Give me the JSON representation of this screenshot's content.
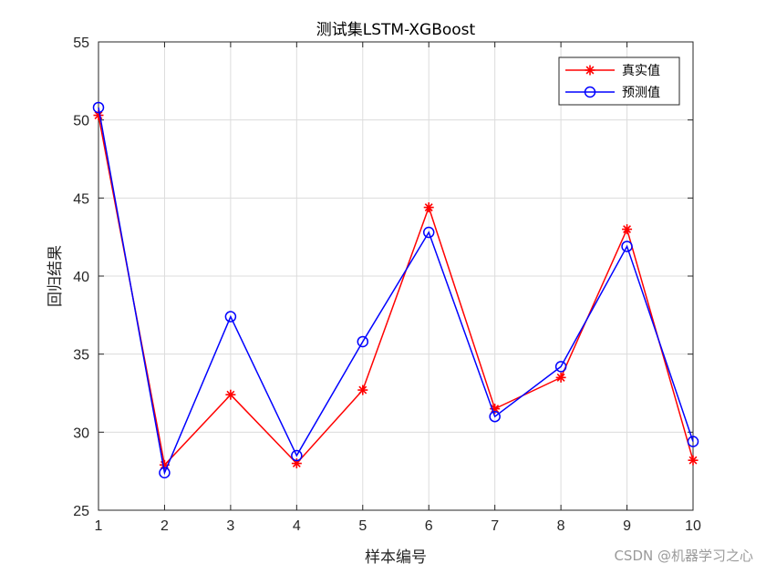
{
  "chart_data": {
    "type": "line",
    "title": "测试集LSTM-XGBoost",
    "xlabel": "样本编号",
    "ylabel": "回归结果",
    "x": [
      1,
      2,
      3,
      4,
      5,
      6,
      7,
      8,
      9,
      10
    ],
    "xlim": [
      1,
      10
    ],
    "ylim": [
      25,
      55
    ],
    "xticks": [
      1,
      2,
      3,
      4,
      5,
      6,
      7,
      8,
      9,
      10
    ],
    "yticks": [
      25,
      30,
      35,
      40,
      45,
      50,
      55
    ],
    "grid": true,
    "legend_position": "top-right",
    "series": [
      {
        "name": "真实值",
        "color": "#ff0000",
        "marker": "asterisk",
        "values": [
          50.3,
          27.9,
          32.4,
          28.0,
          32.7,
          44.4,
          31.5,
          33.5,
          43.0,
          28.2
        ]
      },
      {
        "name": "预测值",
        "color": "#0000ff",
        "marker": "circle",
        "values": [
          50.8,
          27.4,
          37.4,
          28.5,
          35.8,
          42.8,
          31.0,
          34.2,
          41.9,
          29.4
        ]
      }
    ]
  },
  "watermark": "CSDN @机器学习之心"
}
